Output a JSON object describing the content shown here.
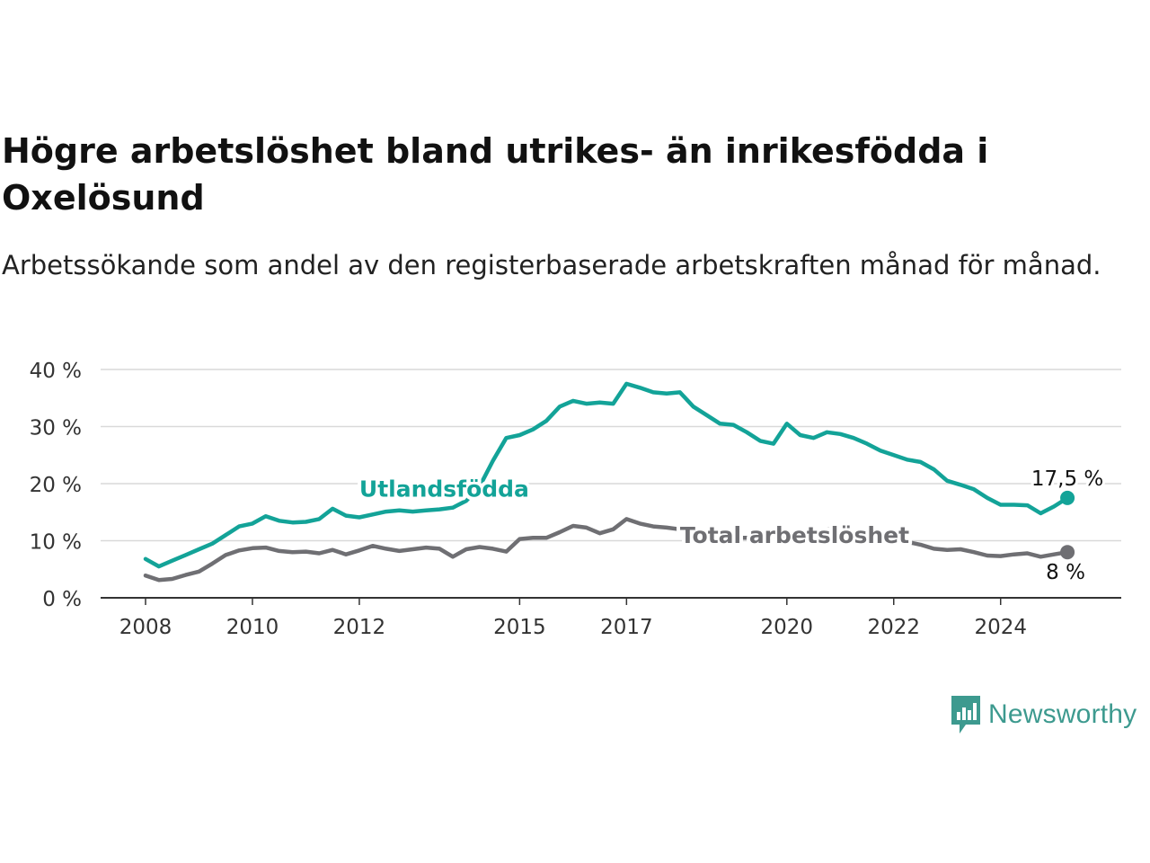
{
  "title": "Högre arbetslöshet bland utrikes- än inrikesfödda i Oxelösund",
  "subtitle": "Arbetssökande som andel av den registerbaserade arbetskraften månad för månad.",
  "brand": {
    "name": "Newsworthy",
    "icon": "newsworthy-logo-icon",
    "color": "#3d9a8f"
  },
  "chart_data": {
    "type": "line",
    "title": "Högre arbetslöshet bland utrikes- än inrikesfödda i Oxelösund",
    "subtitle": "Arbetssökande som andel av den registerbaserade arbetskraften månad för månad.",
    "xlabel": "",
    "ylabel": "",
    "xlim": [
      2008.0,
      2025.4
    ],
    "ylim": [
      0,
      40
    ],
    "x_ticks": [
      {
        "value": 2008.0,
        "label": "2008"
      },
      {
        "value": 2010.0,
        "label": "2010"
      },
      {
        "value": 2012.0,
        "label": "2012"
      },
      {
        "value": 2015.0,
        "label": "2015"
      },
      {
        "value": 2017.0,
        "label": "2017"
      },
      {
        "value": 2020.0,
        "label": "2020"
      },
      {
        "value": 2022.0,
        "label": "2022"
      },
      {
        "value": 2024.0,
        "label": "2024"
      }
    ],
    "y_ticks": [
      {
        "value": 0,
        "label": "0 %"
      },
      {
        "value": 10,
        "label": "10 %"
      },
      {
        "value": 20,
        "label": "20 %"
      },
      {
        "value": 30,
        "label": "30 %"
      },
      {
        "value": 40,
        "label": "40 %"
      }
    ],
    "grid": true,
    "series": [
      {
        "name": "Utlandsfödda",
        "color": "#13a398",
        "end_label": "17,5 %",
        "points": [
          [
            2008.0,
            6.8
          ],
          [
            2008.25,
            5.5
          ],
          [
            2008.5,
            6.5
          ],
          [
            2008.75,
            7.5
          ],
          [
            2009.0,
            8.5
          ],
          [
            2009.25,
            9.5
          ],
          [
            2009.5,
            11.0
          ],
          [
            2009.75,
            12.5
          ],
          [
            2010.0,
            13.0
          ],
          [
            2010.25,
            14.3
          ],
          [
            2010.5,
            13.5
          ],
          [
            2010.75,
            13.2
          ],
          [
            2011.0,
            13.3
          ],
          [
            2011.25,
            13.8
          ],
          [
            2011.5,
            15.6
          ],
          [
            2011.75,
            14.4
          ],
          [
            2012.0,
            14.1
          ],
          [
            2012.25,
            14.6
          ],
          [
            2012.5,
            15.1
          ],
          [
            2012.75,
            15.3
          ],
          [
            2013.0,
            15.1
          ],
          [
            2013.25,
            15.3
          ],
          [
            2013.5,
            15.5
          ],
          [
            2013.75,
            15.8
          ],
          [
            2014.0,
            17.0
          ],
          [
            2014.25,
            19.5
          ],
          [
            2014.5,
            24.0
          ],
          [
            2014.75,
            28.0
          ],
          [
            2015.0,
            28.5
          ],
          [
            2015.25,
            29.5
          ],
          [
            2015.5,
            31.0
          ],
          [
            2015.75,
            33.5
          ],
          [
            2016.0,
            34.5
          ],
          [
            2016.25,
            34.0
          ],
          [
            2016.5,
            34.2
          ],
          [
            2016.75,
            34.0
          ],
          [
            2017.0,
            37.5
          ],
          [
            2017.25,
            36.8
          ],
          [
            2017.5,
            36.0
          ],
          [
            2017.75,
            35.8
          ],
          [
            2018.0,
            36.0
          ],
          [
            2018.25,
            33.5
          ],
          [
            2018.5,
            32.0
          ],
          [
            2018.75,
            30.5
          ],
          [
            2019.0,
            30.3
          ],
          [
            2019.25,
            29.0
          ],
          [
            2019.5,
            27.5
          ],
          [
            2019.75,
            27.0
          ],
          [
            2020.0,
            30.5
          ],
          [
            2020.25,
            28.5
          ],
          [
            2020.5,
            28.0
          ],
          [
            2020.75,
            29.0
          ],
          [
            2021.0,
            28.7
          ],
          [
            2021.25,
            28.0
          ],
          [
            2021.5,
            27.0
          ],
          [
            2021.75,
            25.8
          ],
          [
            2022.0,
            25.0
          ],
          [
            2022.25,
            24.2
          ],
          [
            2022.5,
            23.8
          ],
          [
            2022.75,
            22.5
          ],
          [
            2023.0,
            20.5
          ],
          [
            2023.25,
            19.8
          ],
          [
            2023.5,
            19.0
          ],
          [
            2023.75,
            17.5
          ],
          [
            2024.0,
            16.3
          ],
          [
            2024.25,
            16.3
          ],
          [
            2024.5,
            16.2
          ],
          [
            2024.75,
            14.8
          ],
          [
            2025.0,
            16.0
          ],
          [
            2025.25,
            17.5
          ]
        ]
      },
      {
        "name": "Total arbetslöshet",
        "color": "#6f6f73",
        "end_label": "8 %",
        "points": [
          [
            2008.0,
            3.9
          ],
          [
            2008.25,
            3.1
          ],
          [
            2008.5,
            3.3
          ],
          [
            2008.75,
            4.0
          ],
          [
            2009.0,
            4.6
          ],
          [
            2009.25,
            6.0
          ],
          [
            2009.5,
            7.5
          ],
          [
            2009.75,
            8.3
          ],
          [
            2010.0,
            8.7
          ],
          [
            2010.25,
            8.8
          ],
          [
            2010.5,
            8.2
          ],
          [
            2010.75,
            8.0
          ],
          [
            2011.0,
            8.1
          ],
          [
            2011.25,
            7.8
          ],
          [
            2011.5,
            8.4
          ],
          [
            2011.75,
            7.6
          ],
          [
            2012.0,
            8.3
          ],
          [
            2012.25,
            9.1
          ],
          [
            2012.5,
            8.6
          ],
          [
            2012.75,
            8.2
          ],
          [
            2013.0,
            8.5
          ],
          [
            2013.25,
            8.8
          ],
          [
            2013.5,
            8.6
          ],
          [
            2013.75,
            7.2
          ],
          [
            2014.0,
            8.5
          ],
          [
            2014.25,
            8.9
          ],
          [
            2014.5,
            8.6
          ],
          [
            2014.75,
            8.1
          ],
          [
            2015.0,
            10.3
          ],
          [
            2015.25,
            10.5
          ],
          [
            2015.5,
            10.5
          ],
          [
            2015.75,
            11.5
          ],
          [
            2016.0,
            12.6
          ],
          [
            2016.25,
            12.3
          ],
          [
            2016.5,
            11.3
          ],
          [
            2016.75,
            12.0
          ],
          [
            2017.0,
            13.8
          ],
          [
            2017.25,
            13.0
          ],
          [
            2017.5,
            12.5
          ],
          [
            2017.75,
            12.3
          ],
          [
            2018.0,
            12.0
          ],
          [
            2018.25,
            11.5
          ],
          [
            2018.5,
            11.0
          ],
          [
            2018.75,
            10.8
          ],
          [
            2019.0,
            10.5
          ],
          [
            2019.25,
            10.5
          ],
          [
            2019.5,
            10.6
          ],
          [
            2019.75,
            10.8
          ],
          [
            2020.0,
            11.0
          ],
          [
            2020.25,
            11.2
          ],
          [
            2020.5,
            11.5
          ],
          [
            2020.75,
            12.0
          ],
          [
            2021.0,
            11.8
          ],
          [
            2021.25,
            11.5
          ],
          [
            2021.5,
            10.8
          ],
          [
            2021.75,
            10.4
          ],
          [
            2022.0,
            10.1
          ],
          [
            2022.25,
            9.8
          ],
          [
            2022.5,
            9.3
          ],
          [
            2022.75,
            8.6
          ],
          [
            2023.0,
            8.4
          ],
          [
            2023.25,
            8.5
          ],
          [
            2023.5,
            8.0
          ],
          [
            2023.75,
            7.4
          ],
          [
            2024.0,
            7.3
          ],
          [
            2024.25,
            7.6
          ],
          [
            2024.5,
            7.8
          ],
          [
            2024.75,
            7.2
          ],
          [
            2025.0,
            7.6
          ],
          [
            2025.25,
            8.0
          ]
        ]
      }
    ],
    "annotations": [
      {
        "text": "Utlandsfödda",
        "series": 0,
        "x": 2012.0,
        "y": 17.7
      },
      {
        "text": "Total arbetslöshet",
        "series": 1,
        "x": 2018.0,
        "y": 9.6
      }
    ]
  }
}
